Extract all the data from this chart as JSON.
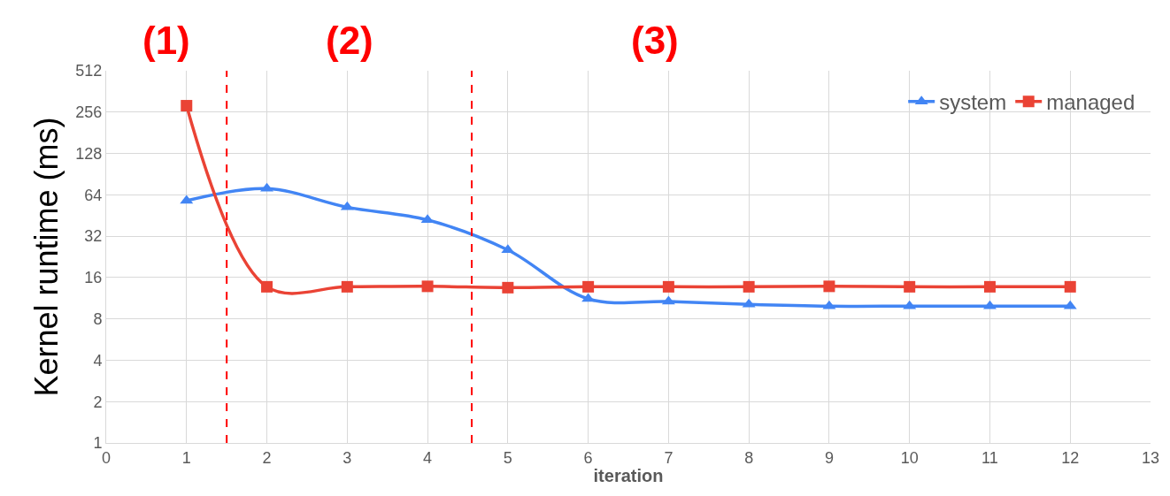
{
  "chart_data": {
    "type": "line",
    "xlabel": "iteration",
    "ylabel": "Kernel runtime (ms)",
    "x": [
      1,
      2,
      3,
      4,
      5,
      6,
      7,
      8,
      9,
      10,
      11,
      12
    ],
    "series": [
      {
        "name": "system",
        "color": "#4285f4",
        "marker": "triangle",
        "values": [
          58,
          71,
          52,
          42,
          25.4,
          11.2,
          10.7,
          10.2,
          9.9,
          9.9,
          9.9,
          9.9
        ]
      },
      {
        "name": "managed",
        "color": "#ea4335",
        "marker": "square",
        "values": [
          285,
          13.7,
          13.7,
          13.8,
          13.5,
          13.7,
          13.7,
          13.7,
          13.8,
          13.7,
          13.7,
          13.7
        ]
      }
    ],
    "log": "y",
    "xlim": [
      0,
      13
    ],
    "xticks": [
      0,
      1,
      2,
      3,
      4,
      5,
      6,
      7,
      8,
      9,
      10,
      11,
      12,
      13
    ],
    "ylim": [
      1,
      512
    ],
    "yticks": [
      1,
      2,
      4,
      8,
      16,
      32,
      64,
      128,
      256,
      512
    ],
    "grid": true,
    "legend": "top right",
    "ref_lines": [
      {
        "axis": "x",
        "value": 1.5,
        "color": "#ff0000",
        "line_style": "dashed"
      },
      {
        "axis": "x",
        "value": 4.55,
        "color": "#ff0000",
        "line_style": "dashed"
      }
    ],
    "annotations": [
      "(1)",
      "(2)",
      "(3)"
    ]
  }
}
